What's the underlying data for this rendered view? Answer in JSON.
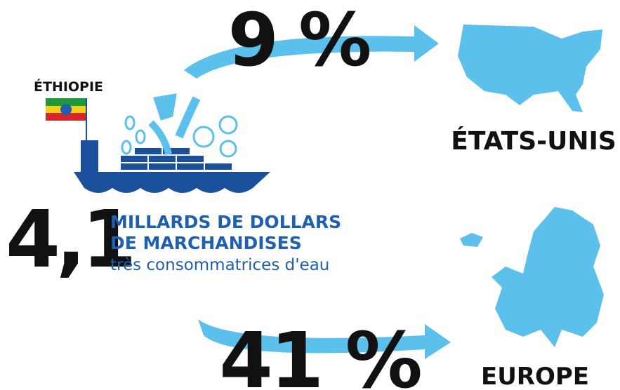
{
  "origin": "ÉTHIOPIE",
  "total": "4,1",
  "description": [
    "MILLARDS DE DOLLARS",
    "DE MARCHANDISES",
    "très consommatrices d'eau"
  ],
  "flows": [
    {
      "percent": "9 %",
      "destination": "ÉTATS-UNIS"
    },
    {
      "percent": "41 %",
      "destination": "EUROPE"
    }
  ]
}
